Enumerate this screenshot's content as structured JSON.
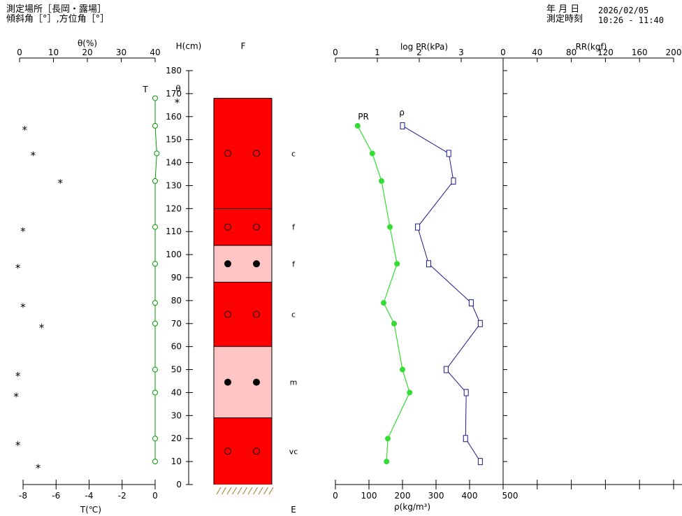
{
  "header": {
    "site_line": "測定場所［長岡・露場］",
    "angle_line": "傾斜角［°］,方位角［°］",
    "date_label": "年 月 日",
    "date_value": "2026/02/05",
    "time_label": "測定時刻",
    "time_value": "10:26 - 11:40"
  },
  "colors": {
    "temperature": "#009900",
    "pr": "#33dd33",
    "density": "#1a1a88",
    "layer_dark": "#ff0000",
    "layer_light": "#ffc4c4",
    "axis": "#000000"
  },
  "chart_data": {
    "type": "scatter",
    "panels": {
      "moisture_temperature": {
        "top_xlabel": "θ(%)",
        "top_ticks": [
          "0",
          "10",
          "20",
          "30",
          "40"
        ],
        "top_range": [
          0,
          40
        ],
        "bottom_xlabel": "T(℃)",
        "bottom_ticks": [
          "-8",
          "-6",
          "-4",
          "-2",
          "0"
        ],
        "bottom_range": [
          -8,
          0
        ],
        "t_label": "T",
        "theta_label": "θ",
        "theta_points": [
          {
            "h": 167,
            "theta": 46.5
          },
          {
            "h": 155,
            "theta": 1.5
          },
          {
            "h": 144,
            "theta": 4
          },
          {
            "h": 132,
            "theta": 12
          },
          {
            "h": 111,
            "theta": 1
          },
          {
            "h": 95,
            "theta": -0.5
          },
          {
            "h": 78,
            "theta": 1
          },
          {
            "h": 69,
            "theta": 6.5
          },
          {
            "h": 48,
            "theta": -0.5
          },
          {
            "h": 39,
            "theta": -1
          },
          {
            "h": 18,
            "theta": -0.5
          },
          {
            "h": 8,
            "theta": 5.5
          }
        ],
        "temperature_points": [
          {
            "h": 168,
            "t": 0
          },
          {
            "h": 156,
            "t": 0
          },
          {
            "h": 144,
            "t": 0.1
          },
          {
            "h": 132,
            "t": 0
          },
          {
            "h": 112,
            "t": 0
          },
          {
            "h": 96,
            "t": 0
          },
          {
            "h": 79,
            "t": 0
          },
          {
            "h": 70,
            "t": 0
          },
          {
            "h": 50,
            "t": 0
          },
          {
            "h": 40,
            "t": 0
          },
          {
            "h": 20,
            "t": 0
          },
          {
            "h": 10,
            "t": 0
          }
        ]
      },
      "height_axis": {
        "label": "H(cm)",
        "range": [
          0,
          180
        ],
        "ticks": [
          "0",
          "10",
          "20",
          "30",
          "40",
          "50",
          "60",
          "70",
          "80",
          "90",
          "100",
          "110",
          "120",
          "130",
          "140",
          "150",
          "160",
          "170",
          "180"
        ]
      },
      "snow_layers": {
        "label_top": "F",
        "label_bottom": "E",
        "snow_top": 168,
        "layers": [
          {
            "from": 120,
            "to": 168,
            "shade": "dark",
            "grain": "c",
            "marker": "open"
          },
          {
            "from": 104,
            "to": 120,
            "shade": "dark",
            "grain": "f",
            "marker": "open"
          },
          {
            "from": 88,
            "to": 104,
            "shade": "light",
            "grain": "f",
            "marker": "filled"
          },
          {
            "from": 60,
            "to": 88,
            "shade": "dark",
            "grain": "c",
            "marker": "open"
          },
          {
            "from": 29,
            "to": 60,
            "shade": "light",
            "grain": "m",
            "marker": "filled"
          },
          {
            "from": 0,
            "to": 29,
            "shade": "dark",
            "grain": "vc",
            "marker": "open"
          }
        ]
      },
      "pr_density": {
        "top_xlabel": "log PR(kPa)",
        "top_ticks": [
          "0",
          "1",
          "2",
          "3"
        ],
        "top_range": [
          0,
          4
        ],
        "bottom_xlabel": "ρ(kg/m³)",
        "bottom_ticks": [
          "0",
          "100",
          "200",
          "300",
          "400",
          "500"
        ],
        "bottom_range": [
          0,
          500
        ],
        "series": [
          {
            "name": "PR",
            "points": [
              {
                "h": 156,
                "log_pr": 0.53
              },
              {
                "h": 144,
                "log_pr": 0.88
              },
              {
                "h": 132,
                "log_pr": 1.1
              },
              {
                "h": 112,
                "log_pr": 1.3
              },
              {
                "h": 96,
                "log_pr": 1.47
              },
              {
                "h": 79,
                "log_pr": 1.15
              },
              {
                "h": 70,
                "log_pr": 1.4
              },
              {
                "h": 50,
                "log_pr": 1.6
              },
              {
                "h": 40,
                "log_pr": 1.77
              },
              {
                "h": 20,
                "log_pr": 1.25
              },
              {
                "h": 10,
                "log_pr": 1.22
              }
            ]
          },
          {
            "name": "ρ",
            "points": [
              {
                "h": 156,
                "rho": 200
              },
              {
                "h": 144,
                "rho": 338
              },
              {
                "h": 132,
                "rho": 352
              },
              {
                "h": 112,
                "rho": 245
              },
              {
                "h": 96,
                "rho": 278
              },
              {
                "h": 79,
                "rho": 405
              },
              {
                "h": 70,
                "rho": 432
              },
              {
                "h": 50,
                "rho": 330
              },
              {
                "h": 40,
                "rho": 390
              },
              {
                "h": 20,
                "rho": 388
              },
              {
                "h": 10,
                "rho": 432
              }
            ]
          }
        ]
      },
      "ram_resistance": {
        "top_xlabel": "RR(kgf)",
        "top_ticks": [
          "0",
          "40",
          "80",
          "120",
          "160",
          "200"
        ],
        "top_range": [
          0,
          200
        ]
      }
    }
  }
}
